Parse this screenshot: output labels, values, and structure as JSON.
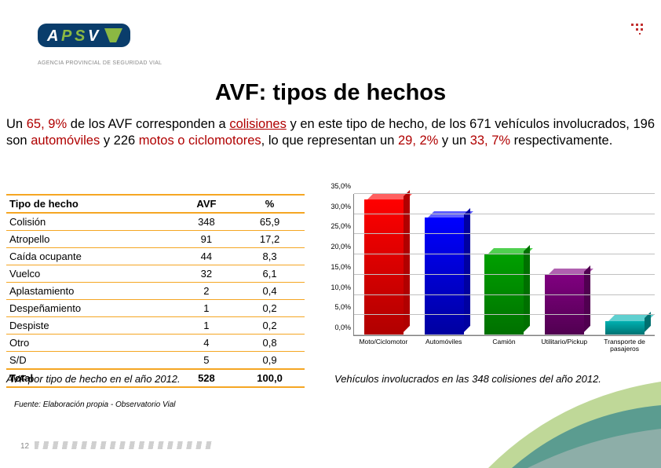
{
  "logo": {
    "text": "APSV",
    "subtitle": "AGENCIA PROVINCIAL DE SEGURIDAD VIAL"
  },
  "title": "AVF: tipos de hechos",
  "body": {
    "p1a": "Un ",
    "pct1": "65, 9%",
    "p1b": " de los AVF corresponden a ",
    "w1": "colisiones",
    "p1c": " y en este tipo de hecho, de los 671 vehículos involucrados, 196 son ",
    "w2": "automóviles",
    "p1d": " y 226 ",
    "w3": "motos o ciclomotores",
    "p1e": ", lo que representan un ",
    "pct2": "29, 2%",
    "p1f": " y un ",
    "pct3": "33, 7%",
    "p1g": " respectivamente."
  },
  "table": {
    "headers": [
      "Tipo de hecho",
      "AVF",
      "%"
    ],
    "rows": [
      [
        "Colisión",
        "348",
        "65,9"
      ],
      [
        "Atropello",
        "91",
        "17,2"
      ],
      [
        "Caída ocupante",
        "44",
        "8,3"
      ],
      [
        "Vuelco",
        "32",
        "6,1"
      ],
      [
        "Aplastamiento",
        "2",
        "0,4"
      ],
      [
        "Despeñamiento",
        "1",
        "0,2"
      ],
      [
        "Despiste",
        "1",
        "0,2"
      ],
      [
        "Otro",
        "4",
        "0,8"
      ],
      [
        "S/D",
        "5",
        "0,9"
      ]
    ],
    "total": [
      "Total",
      "528",
      "100,0"
    ]
  },
  "chart": {
    "type": "bar",
    "ylim": [
      0,
      35
    ],
    "ytick_step": 5,
    "yticks": [
      "0,0%",
      "5,0%",
      "10,0%",
      "15,0%",
      "20,0%",
      "25,0%",
      "30,0%",
      "35,0%"
    ],
    "categories": [
      "Moto/Ciclomotor",
      "Automóviles",
      "Camión",
      "Utilitario/Pickup",
      "Transporte de pasajeros"
    ],
    "values": [
      33.7,
      29.2,
      20.0,
      15.0,
      3.5
    ],
    "bar_colors": [
      "#ff0000",
      "#0000ff",
      "#00a000",
      "#800080",
      "#00b0b0"
    ],
    "bar_top_colors": [
      "#ff6060",
      "#6060ff",
      "#50d050",
      "#b060b0",
      "#60d0d0"
    ],
    "bar_side_colors": [
      "#b00000",
      "#0000a0",
      "#007000",
      "#500050",
      "#007070"
    ],
    "grid_color": "#c0c0c0",
    "label_fontsize": 9
  },
  "caption_left": "AVF por tipo de hecho en el año 2012.",
  "caption_right": "Vehículos involucrados en las 348 colisiones del año 2012.",
  "source": "Fuente: Elaboración propia - Observatorio Vial",
  "page": "12"
}
